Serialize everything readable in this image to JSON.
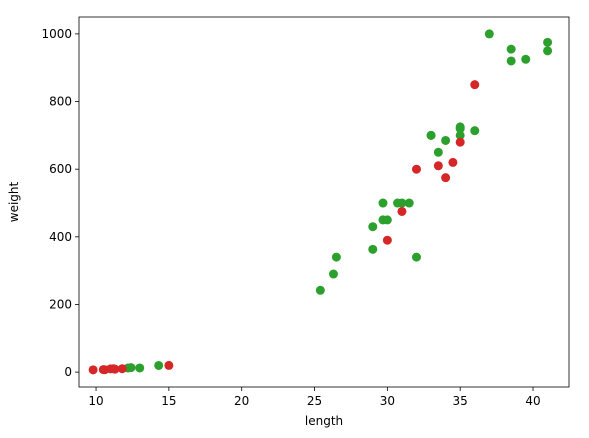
{
  "chart_data": {
    "type": "scatter",
    "xlabel": "length",
    "ylabel": "weight",
    "xlim": [
      8.83,
      42.47
    ],
    "ylim": [
      -44,
      1050
    ],
    "xticks": [
      10,
      15,
      20,
      25,
      30,
      35,
      40
    ],
    "yticks": [
      0,
      200,
      400,
      600,
      800,
      1000
    ],
    "series": [
      {
        "color": "#2ca02c",
        "x": [
          12.2,
          12.4,
          13.0,
          14.3,
          25.4,
          26.3,
          26.5,
          29.0,
          29.0,
          29.7,
          29.7,
          30.0,
          30.7,
          31.0,
          31.5,
          32.0,
          33.0,
          33.0,
          33.5,
          34.0,
          35.0,
          35.0,
          35.0,
          36.0,
          37.0,
          38.5,
          38.5,
          39.5,
          41.0,
          41.0
        ],
        "values": [
          12.2,
          13.4,
          12.2,
          19.7,
          242,
          290,
          340,
          363,
          430,
          500,
          450,
          450,
          500,
          500,
          500,
          340,
          700,
          700,
          650,
          685,
          725,
          720,
          700,
          714,
          1000,
          955,
          920,
          925,
          975,
          950
        ]
      },
      {
        "color": "#d62728",
        "x": [
          9.8,
          10.5,
          10.6,
          11.0,
          11.2,
          11.3,
          11.8,
          15.0,
          30.0,
          31.0,
          32.0,
          33.5,
          34.0,
          34.5,
          35.0,
          36.0
        ],
        "values": [
          6.7,
          7.5,
          7.0,
          9.7,
          9.8,
          8.7,
          10.0,
          19.9,
          390,
          475,
          600,
          610,
          575,
          620,
          680,
          850
        ]
      }
    ]
  }
}
